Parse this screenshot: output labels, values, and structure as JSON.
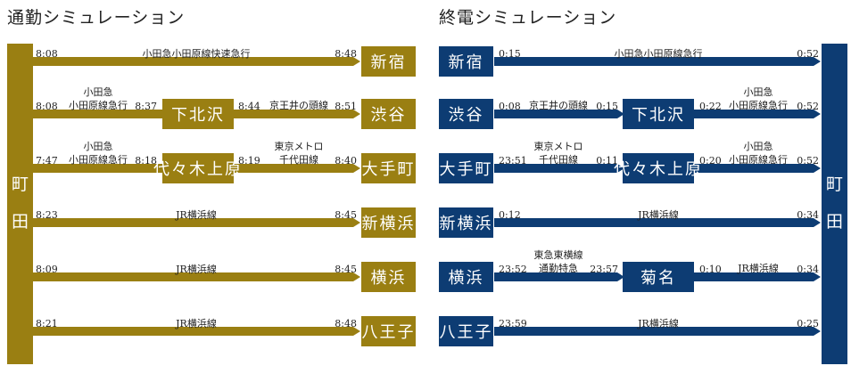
{
  "commute": {
    "title": "通勤シミュレーション",
    "origin": [
      "町",
      "田"
    ],
    "color": "#9a7f12",
    "routes": [
      {
        "dest": "新宿",
        "times": [
          "8:08",
          "8:48"
        ],
        "lines": [
          "小田急小田原線快速急行"
        ]
      },
      {
        "dest": "渋谷",
        "transfer": "下北沢",
        "times": [
          "8:08",
          "8:37",
          "8:44",
          "8:51"
        ],
        "lines": [
          "小田急\n小田原線急行",
          "京王井の頭線"
        ]
      },
      {
        "dest": "大手町",
        "transfer": "代々木上原",
        "times": [
          "7:47",
          "8:18",
          "8:19",
          "8:40"
        ],
        "lines": [
          "小田急\n小田原線急行",
          "東京メトロ\n千代田線"
        ]
      },
      {
        "dest": "新横浜",
        "times": [
          "8:23",
          "8:45"
        ],
        "lines": [
          "JR横浜線"
        ]
      },
      {
        "dest": "横浜",
        "times": [
          "8:09",
          "8:45"
        ],
        "lines": [
          "JR横浜線"
        ]
      },
      {
        "dest": "八王子",
        "times": [
          "8:21",
          "8:48"
        ],
        "lines": [
          "JR横浜線"
        ]
      }
    ]
  },
  "lastTrain": {
    "title": "終電シミュレーション",
    "origin": [
      "町",
      "田"
    ],
    "color": "#0d3c73",
    "routes": [
      {
        "dest": "新宿",
        "times": [
          "0:15",
          "0:52"
        ],
        "lines": [
          "小田急小田原線急行"
        ]
      },
      {
        "dest": "渋谷",
        "transfer": "下北沢",
        "times": [
          "0:08",
          "0:15",
          "0:22",
          "0:52"
        ],
        "lines": [
          "京王井の頭線",
          "小田急\n小田原線急行"
        ]
      },
      {
        "dest": "大手町",
        "transfer": "代々木上原",
        "times": [
          "23:51",
          "0:11",
          "0:20",
          "0:52"
        ],
        "lines": [
          "東京メトロ\n千代田線",
          "小田急\n小田原線急行"
        ]
      },
      {
        "dest": "新横浜",
        "times": [
          "0:12",
          "0:34"
        ],
        "lines": [
          "JR横浜線"
        ]
      },
      {
        "dest": "横浜",
        "transfer": "菊名",
        "times": [
          "23:52",
          "23:57",
          "0:10",
          "0:34"
        ],
        "lines": [
          "東急東横線\n通勤特急",
          "JR横浜線"
        ]
      },
      {
        "dest": "八王子",
        "times": [
          "23:59",
          "0:25"
        ],
        "lines": [
          "JR横浜線"
        ]
      }
    ]
  }
}
